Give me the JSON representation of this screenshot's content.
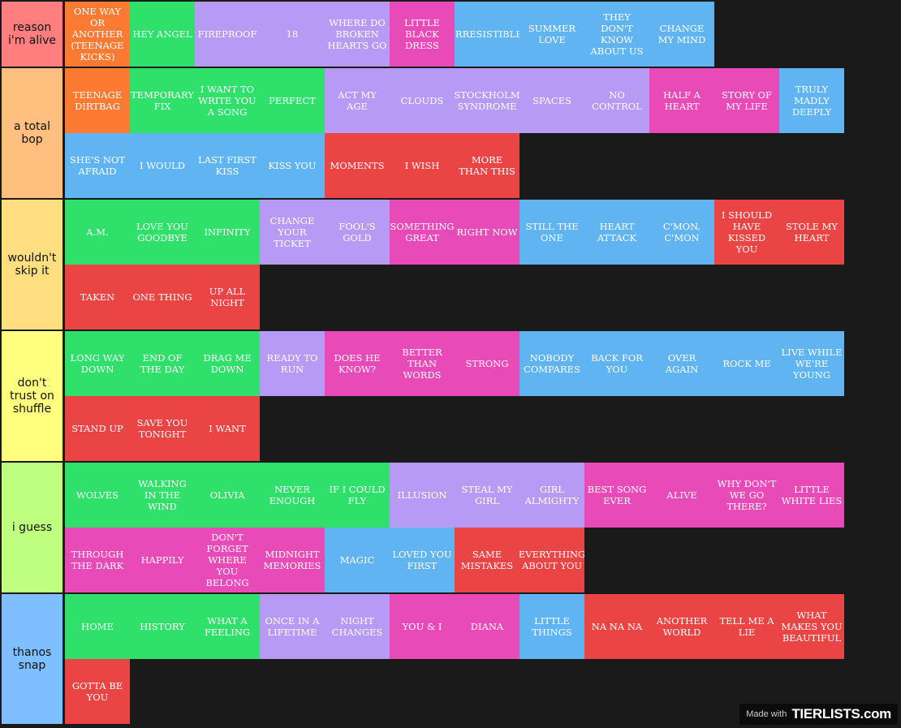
{
  "colors": {
    "orange": "#fd7a33",
    "green": "#2fe16b",
    "purple": "#b69af3",
    "pink": "#e84ab8",
    "blue": "#60b4f2",
    "red": "#ea4444"
  },
  "tiers": [
    {
      "label": "reason i'm alive",
      "color": "#ff7f7f",
      "items": [
        {
          "t": "One way or another (teenage kicks)",
          "c": "orange"
        },
        {
          "t": "Hey angel",
          "c": "green"
        },
        {
          "t": "Fireproof",
          "c": "purple"
        },
        {
          "t": "18",
          "c": "purple"
        },
        {
          "t": "Where do broken hearts go",
          "c": "purple"
        },
        {
          "t": "Little black dress",
          "c": "pink"
        },
        {
          "t": "Irresistible",
          "c": "blue"
        },
        {
          "t": "Summer love",
          "c": "blue"
        },
        {
          "t": "They don't know about us",
          "c": "blue"
        },
        {
          "t": "Change my mind",
          "c": "blue"
        }
      ]
    },
    {
      "label": "a total bop",
      "color": "#ffbf7f",
      "items": [
        {
          "t": "Teenage dirtbag",
          "c": "orange"
        },
        {
          "t": "Temporary fix",
          "c": "green"
        },
        {
          "t": "I want to write you a song",
          "c": "green"
        },
        {
          "t": "Perfect",
          "c": "green"
        },
        {
          "t": "Act my age",
          "c": "purple"
        },
        {
          "t": "Clouds",
          "c": "purple"
        },
        {
          "t": "Stockholm syndrome",
          "c": "purple"
        },
        {
          "t": "Spaces",
          "c": "purple"
        },
        {
          "t": "No control",
          "c": "purple"
        },
        {
          "t": "Half a heart",
          "c": "pink"
        },
        {
          "t": "Story of my life",
          "c": "pink"
        },
        {
          "t": "Truly madly deeply",
          "c": "blue"
        },
        {
          "t": "She's not afraid",
          "c": "blue"
        },
        {
          "t": "I would",
          "c": "blue"
        },
        {
          "t": "Last first kiss",
          "c": "blue"
        },
        {
          "t": "Kiss you",
          "c": "blue"
        },
        {
          "t": "Moments",
          "c": "red"
        },
        {
          "t": "I wish",
          "c": "red"
        },
        {
          "t": "More than this",
          "c": "red"
        }
      ]
    },
    {
      "label": "wouldn't skip it",
      "color": "#ffdf7f",
      "items": [
        {
          "t": "A.M.",
          "c": "green"
        },
        {
          "t": "Love you goodbye",
          "c": "green"
        },
        {
          "t": "Infinity",
          "c": "green"
        },
        {
          "t": "Change your ticket",
          "c": "purple"
        },
        {
          "t": "Fool's gold",
          "c": "purple"
        },
        {
          "t": "Something great",
          "c": "pink"
        },
        {
          "t": "Right now",
          "c": "pink"
        },
        {
          "t": "Still the one",
          "c": "blue"
        },
        {
          "t": "Heart attack",
          "c": "blue"
        },
        {
          "t": "C'mon, c'mon",
          "c": "blue"
        },
        {
          "t": "I should have kissed you",
          "c": "red"
        },
        {
          "t": "Stole my heart",
          "c": "red"
        },
        {
          "t": "Taken",
          "c": "red"
        },
        {
          "t": "One thing",
          "c": "red"
        },
        {
          "t": "Up all night",
          "c": "red"
        }
      ]
    },
    {
      "label": "don't trust on shuffle",
      "color": "#ffff7f",
      "items": [
        {
          "t": "Long way down",
          "c": "green"
        },
        {
          "t": "End of the day",
          "c": "green"
        },
        {
          "t": "Drag me down",
          "c": "green"
        },
        {
          "t": "Ready to run",
          "c": "purple"
        },
        {
          "t": "Does he know?",
          "c": "pink"
        },
        {
          "t": "Better than words",
          "c": "pink"
        },
        {
          "t": "Strong",
          "c": "pink"
        },
        {
          "t": "Nobody compares",
          "c": "blue"
        },
        {
          "t": "Back for you",
          "c": "blue"
        },
        {
          "t": "Over again",
          "c": "blue"
        },
        {
          "t": "Rock me",
          "c": "blue"
        },
        {
          "t": "Live while we're young",
          "c": "blue"
        },
        {
          "t": "Stand up",
          "c": "red"
        },
        {
          "t": "Save you tonight",
          "c": "red"
        },
        {
          "t": "I want",
          "c": "red"
        }
      ]
    },
    {
      "label": "i guess",
      "color": "#bfff7f",
      "items": [
        {
          "t": "Wolves",
          "c": "green"
        },
        {
          "t": "Walking in the wind",
          "c": "green"
        },
        {
          "t": "Olivia",
          "c": "green"
        },
        {
          "t": "Never enough",
          "c": "green"
        },
        {
          "t": "If I could fly",
          "c": "green"
        },
        {
          "t": "Illusion",
          "c": "purple"
        },
        {
          "t": "Steal my girl",
          "c": "purple"
        },
        {
          "t": "Girl almighty",
          "c": "purple"
        },
        {
          "t": "Best song ever",
          "c": "pink"
        },
        {
          "t": "Alive",
          "c": "pink"
        },
        {
          "t": "Why don't we go there?",
          "c": "pink"
        },
        {
          "t": "Little white lies",
          "c": "pink"
        },
        {
          "t": "Through the dark",
          "c": "pink"
        },
        {
          "t": "Happily",
          "c": "pink"
        },
        {
          "t": "Don't forget where you belong",
          "c": "pink"
        },
        {
          "t": "Midnight memories",
          "c": "pink"
        },
        {
          "t": "Magic",
          "c": "blue"
        },
        {
          "t": "Loved you first",
          "c": "blue"
        },
        {
          "t": "Same mistakes",
          "c": "red"
        },
        {
          "t": "Everything about you",
          "c": "red"
        }
      ]
    },
    {
      "label": "thanos snap",
      "color": "#7fbfff",
      "items": [
        {
          "t": "Home",
          "c": "green"
        },
        {
          "t": "History",
          "c": "green"
        },
        {
          "t": "What a feeling",
          "c": "green"
        },
        {
          "t": "Once in a lifetime",
          "c": "purple"
        },
        {
          "t": "Night changes",
          "c": "purple"
        },
        {
          "t": "You & I",
          "c": "pink"
        },
        {
          "t": "Diana",
          "c": "pink"
        },
        {
          "t": "Little things",
          "c": "blue"
        },
        {
          "t": "Na na na",
          "c": "red"
        },
        {
          "t": "Another world",
          "c": "red"
        },
        {
          "t": "Tell me a lie",
          "c": "red"
        },
        {
          "t": "What makes you beautiful",
          "c": "red"
        },
        {
          "t": "Gotta be you",
          "c": "red"
        }
      ]
    }
  ],
  "watermark": {
    "made_with": "Made with",
    "brand": "TIERLISTS.com"
  }
}
